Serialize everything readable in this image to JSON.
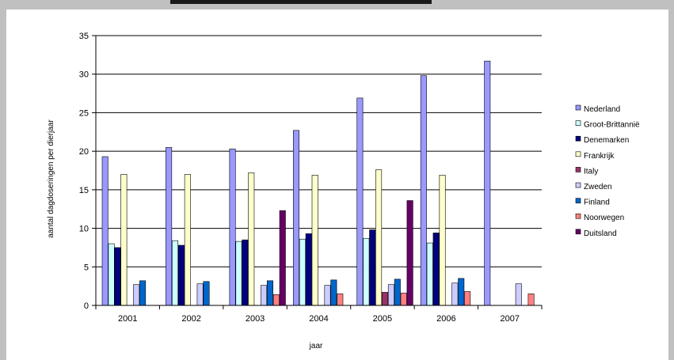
{
  "chart_data": {
    "type": "bar",
    "title": "",
    "xlabel": "jaar",
    "ylabel": "aantal dagdoseringen per dierjaar",
    "ylim": [
      0,
      35
    ],
    "yticks": [
      0,
      5,
      10,
      15,
      20,
      25,
      30,
      35
    ],
    "categories": [
      "2001",
      "2002",
      "2003",
      "2004",
      "2005",
      "2006",
      "2007"
    ],
    "grid": true,
    "legend_position": "right",
    "series": [
      {
        "name": "Nederland",
        "color": "#9999ff",
        "values": [
          19.3,
          20.5,
          20.3,
          22.7,
          26.9,
          29.8,
          31.7
        ]
      },
      {
        "name": "Groot-Brittannië",
        "color": "#ccffff",
        "values": [
          8.0,
          8.4,
          8.3,
          8.6,
          8.7,
          8.1,
          null
        ]
      },
      {
        "name": "Denemarken",
        "color": "#000080",
        "values": [
          7.5,
          7.8,
          8.5,
          9.3,
          9.8,
          9.4,
          null
        ]
      },
      {
        "name": "Frankrijk",
        "color": "#ffffcc",
        "values": [
          17.0,
          17.0,
          17.2,
          16.9,
          17.6,
          16.9,
          null
        ]
      },
      {
        "name": "Italy",
        "color": "#993366",
        "values": [
          null,
          null,
          null,
          null,
          1.7,
          null,
          null
        ]
      },
      {
        "name": "Zweden",
        "color": "#ccccff",
        "values": [
          2.7,
          2.8,
          2.6,
          2.6,
          2.7,
          2.9,
          2.8
        ]
      },
      {
        "name": "Finland",
        "color": "#0066cc",
        "values": [
          3.2,
          3.1,
          3.2,
          3.3,
          3.4,
          3.5,
          null
        ]
      },
      {
        "name": "Noorwegen",
        "color": "#ff8080",
        "values": [
          null,
          null,
          1.4,
          1.5,
          1.6,
          1.8,
          1.5
        ]
      },
      {
        "name": "Duitsland",
        "color": "#660066",
        "values": [
          null,
          null,
          12.3,
          null,
          13.6,
          null,
          null
        ]
      }
    ]
  }
}
